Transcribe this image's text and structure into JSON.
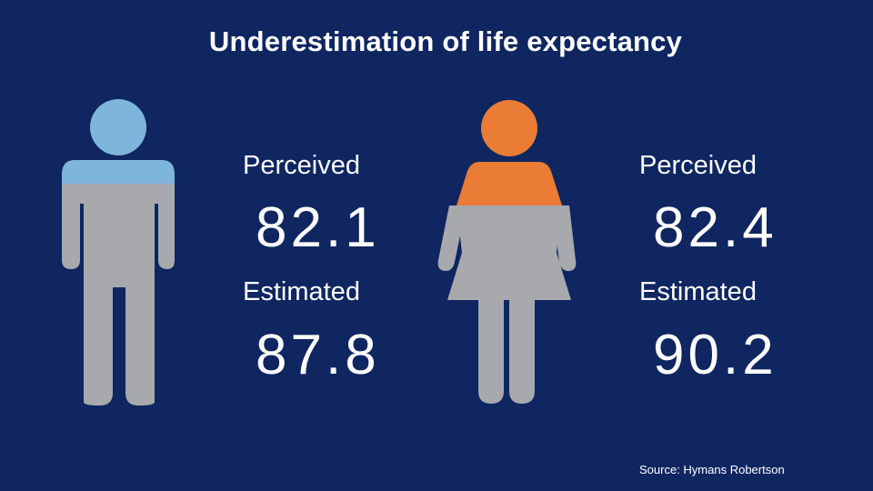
{
  "title": "Underestimation of life expectancy",
  "colors": {
    "background": "#0f2660",
    "male_accent": "#7fb5da",
    "female_accent": "#ea7c35",
    "figure_grey": "#a7a9ad"
  },
  "male": {
    "icon": "male-figure-icon",
    "perceived_label": "Perceived",
    "perceived_value": "82.1",
    "estimated_label": "Estimated",
    "estimated_value": "87.8"
  },
  "female": {
    "icon": "female-figure-icon",
    "perceived_label": "Perceived",
    "perceived_value": "82.4",
    "estimated_label": "Estimated",
    "estimated_value": "90.2"
  },
  "source": "Source: Hymans Robertson"
}
